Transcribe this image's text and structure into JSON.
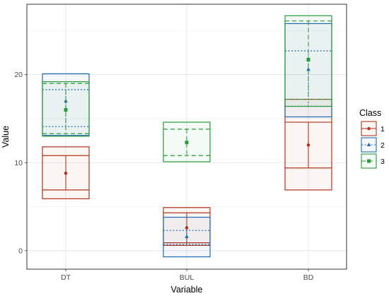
{
  "chart_data": {
    "type": "crossbar",
    "xlabel": "Variable",
    "ylabel": "Value",
    "categories": [
      "DT",
      "BUL",
      "BD"
    ],
    "y_ticks": [
      0,
      10,
      20
    ],
    "ylim": [
      -2.1,
      28.0
    ],
    "grid": true,
    "legend": {
      "title": "Class",
      "placement": "right"
    },
    "series": [
      {
        "name": "1",
        "color": "#b2341c",
        "line": "solid",
        "marker": "circle",
        "boxes": [
          {
            "category": "DT",
            "min": 5.9,
            "q1": 6.9,
            "mean": 8.8,
            "q3": 10.8,
            "max": 11.8
          },
          {
            "category": "BUL",
            "min": 0.6,
            "q1": 0.9,
            "mean": 2.6,
            "q3": 4.3,
            "max": 4.9
          },
          {
            "category": "BD",
            "min": 6.9,
            "q1": 9.4,
            "mean": 12.0,
            "q3": 14.6,
            "max": 17.2
          }
        ]
      },
      {
        "name": "2",
        "color": "#1f6ab3",
        "line": "dotted",
        "marker": "triangle",
        "boxes": [
          {
            "category": "DT",
            "min": 13.1,
            "q1": 14.1,
            "mean": 17.0,
            "q3": 18.3,
            "max": 20.1
          },
          {
            "category": "BUL",
            "min": -0.7,
            "q1": 0.7,
            "mean": 1.6,
            "q3": 2.3,
            "max": 3.8
          },
          {
            "category": "BD",
            "min": 15.2,
            "q1": 16.4,
            "mean": 20.6,
            "q3": 22.7,
            "max": 25.8
          }
        ]
      },
      {
        "name": "3",
        "color": "#2a9a3a",
        "line": "dashed",
        "marker": "square",
        "boxes": [
          {
            "category": "DT",
            "min": 13.0,
            "q1": 13.3,
            "mean": 16.0,
            "q3": 19.0,
            "max": 19.2
          },
          {
            "category": "BUL",
            "min": 10.1,
            "q1": 10.8,
            "mean": 12.3,
            "q3": 13.8,
            "max": 14.6
          },
          {
            "category": "BD",
            "min": 16.4,
            "q1": 17.2,
            "mean": 21.7,
            "q3": 26.1,
            "max": 26.7
          }
        ]
      }
    ]
  }
}
